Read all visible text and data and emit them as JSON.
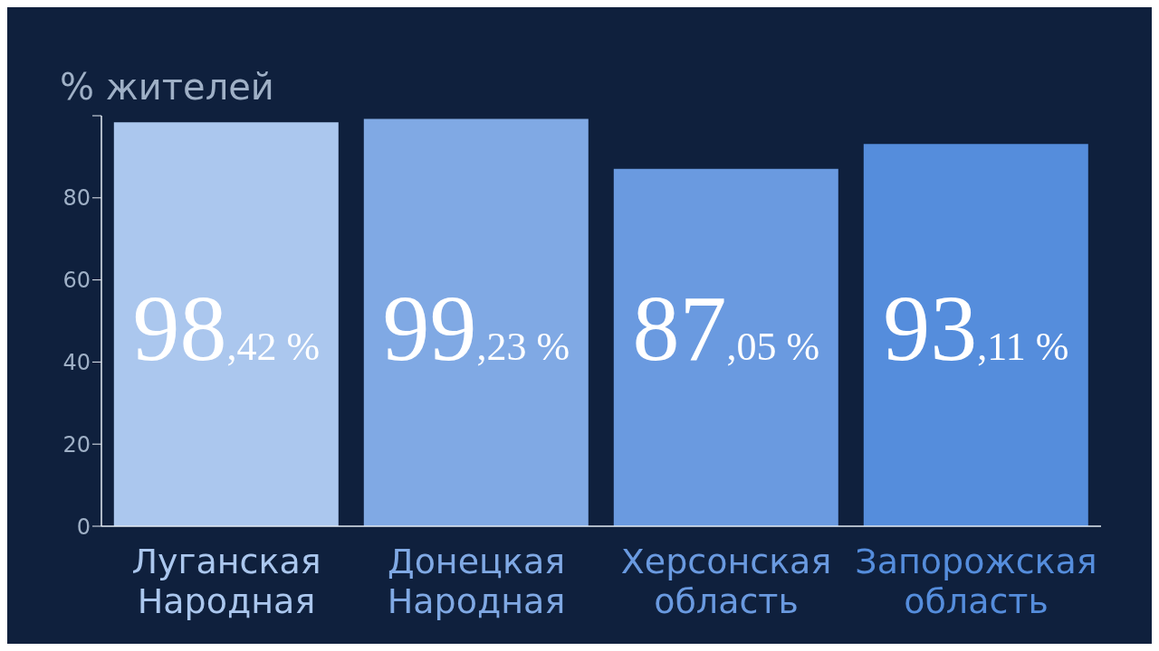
{
  "chart_data": {
    "type": "bar",
    "ylabel": "% жителей",
    "categories": [
      "Луганская Народная",
      "Донецкая Народная",
      "Херсонская область",
      "Запорожская область"
    ],
    "values": [
      98.42,
      99.23,
      87.05,
      93.11
    ],
    "colors": [
      "#abc7ee",
      "#80a9e4",
      "#6a9ae0",
      "#558ddc"
    ],
    "value_labels": [
      "98,42 %",
      "99,23 %",
      "87,05 %",
      "93,11 %"
    ],
    "ylim": [
      0,
      100
    ],
    "yticks": [
      0,
      20,
      40,
      60,
      80,
      {
        "value": 100,
        "label": null
      }
    ],
    "grid": false,
    "legend": false
  }
}
